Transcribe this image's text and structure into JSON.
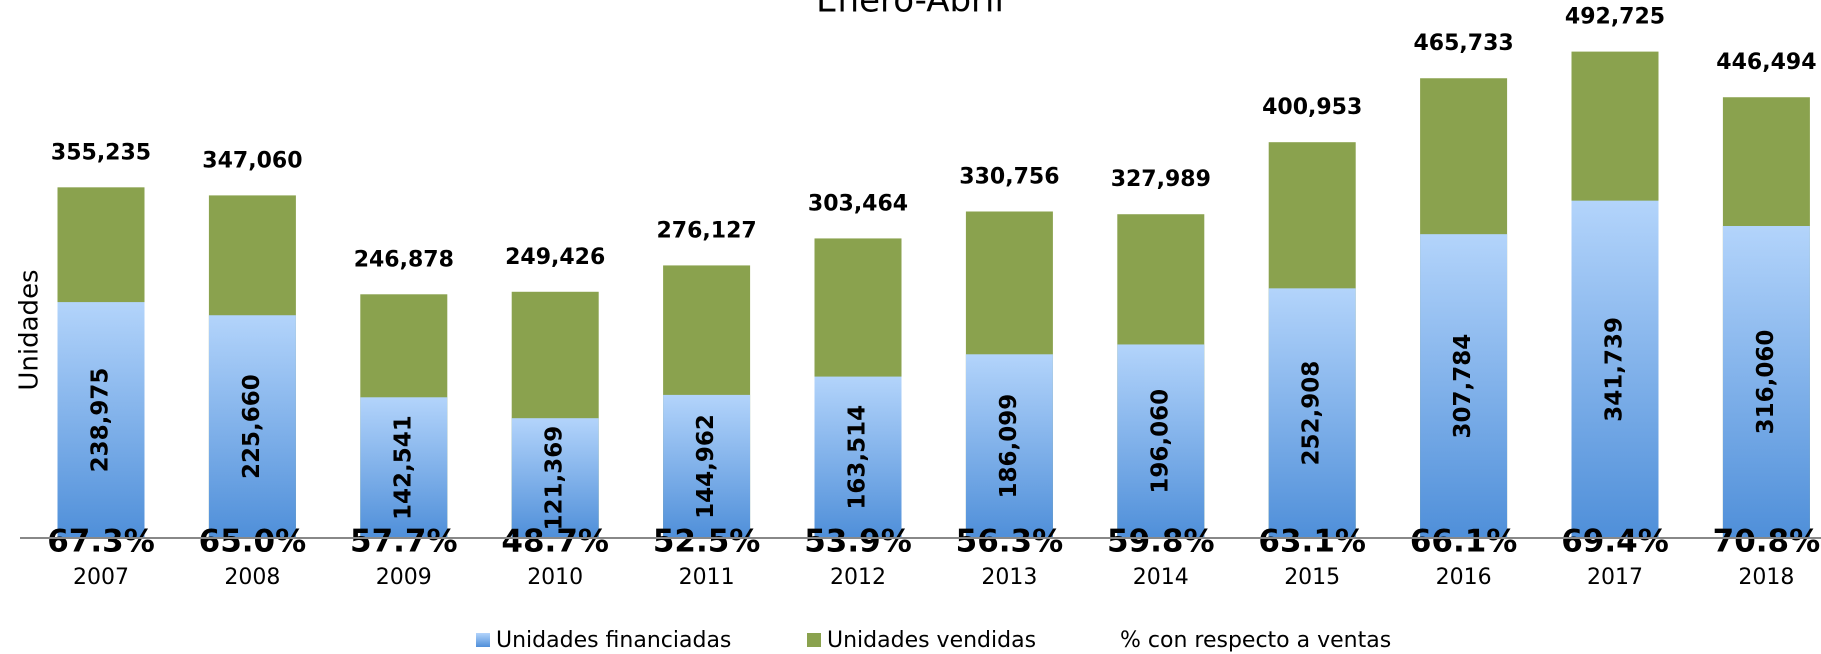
{
  "chart_data": {
    "type": "bar",
    "title": "Enero-Abril",
    "y_label": "Unidades",
    "categories": [
      "2007",
      "2008",
      "2009",
      "2010",
      "2011",
      "2012",
      "2013",
      "2014",
      "2015",
      "2016",
      "2017",
      "2018"
    ],
    "ylim": [
      0,
      545000
    ],
    "series": [
      {
        "name": "Unidades financiadas",
        "color": "#4f8fd9",
        "values": [
          238975,
          225660,
          142541,
          121369,
          144962,
          163514,
          186099,
          196060,
          252908,
          307784,
          341739,
          316060
        ],
        "value_labels": [
          "238,975",
          "225,660",
          "142,541",
          "121,369",
          "144,962",
          "163,514",
          "186,099",
          "196,060",
          "252,908",
          "307,784",
          "341,739",
          "316,060"
        ]
      },
      {
        "name": "Unidades vendidas",
        "color": "#8aa24e",
        "values": [
          355235,
          347060,
          246878,
          249426,
          276127,
          303464,
          330756,
          327989,
          400953,
          465733,
          492725,
          446494
        ],
        "value_labels": [
          "355,235",
          "347,060",
          "246,878",
          "249,426",
          "276,127",
          "303,464",
          "330,756",
          "327,989",
          "400,953",
          "465,733",
          "492,725",
          "446,494"
        ]
      },
      {
        "name": "% con respecto a ventas",
        "values": [
          67.3,
          65.0,
          57.7,
          48.7,
          52.5,
          53.9,
          56.3,
          59.8,
          63.1,
          66.1,
          69.4,
          70.8
        ],
        "value_labels": [
          "67.3%",
          "65.0%",
          "57.7%",
          "48.7%",
          "52.5%",
          "53.9%",
          "56.3%",
          "59.8%",
          "63.1%",
          "66.1%",
          "69.4%",
          "70.8%"
        ]
      }
    ]
  }
}
